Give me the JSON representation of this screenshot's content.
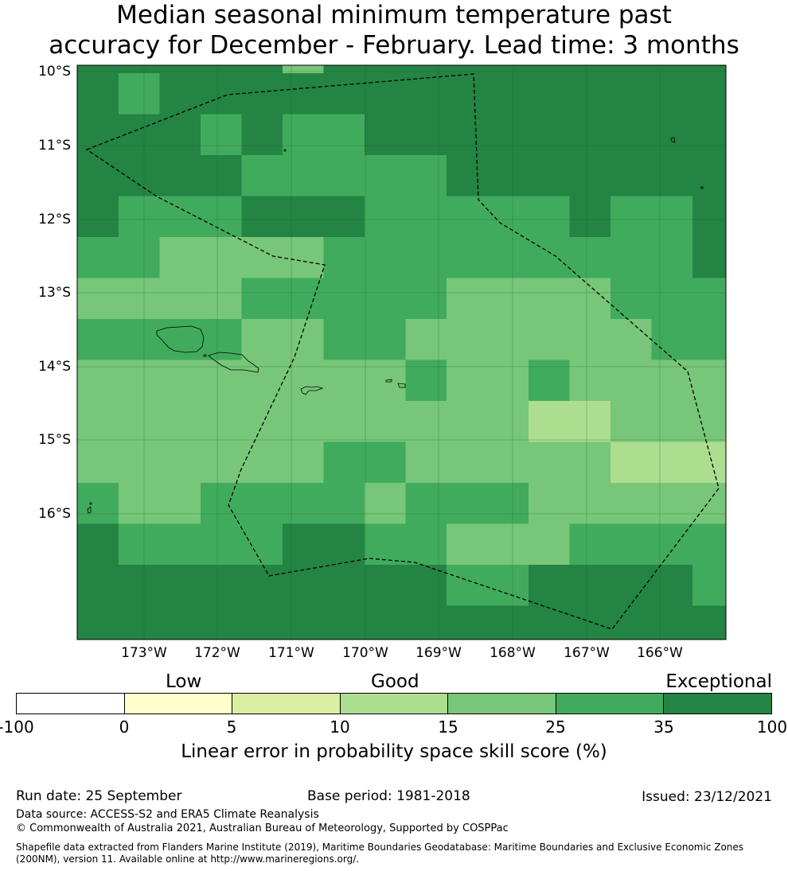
{
  "title": {
    "line1": "Median seasonal minimum temperature past",
    "line2": "accuracy for December - February. Lead time: 3 months"
  },
  "map": {
    "latitude_labels": [
      "10°S",
      "11°S",
      "12°S",
      "13°S",
      "14°S",
      "15°S",
      "16°S"
    ],
    "longitude_labels": [
      "173°W",
      "172°W",
      "171°W",
      "170°W",
      "169°W",
      "168°W",
      "167°W",
      "166°W"
    ],
    "skill_grid_legend": "0=white(-100-0),1=0-5,2=5-10,3=10-15,4=15-25,5=25-35,6=35-100",
    "skill_grid": [
      [
        6,
        6,
        6,
        6,
        6,
        4,
        6,
        6,
        6,
        6,
        6,
        6,
        6,
        6,
        6,
        6
      ],
      [
        6,
        5,
        6,
        6,
        6,
        6,
        6,
        6,
        6,
        6,
        6,
        6,
        6,
        6,
        6,
        6
      ],
      [
        6,
        6,
        6,
        5,
        6,
        5,
        5,
        6,
        6,
        6,
        6,
        6,
        6,
        6,
        6,
        6
      ],
      [
        6,
        6,
        6,
        6,
        5,
        5,
        5,
        5,
        5,
        6,
        6,
        6,
        6,
        6,
        6,
        6
      ],
      [
        6,
        5,
        5,
        5,
        6,
        6,
        6,
        5,
        5,
        5,
        5,
        5,
        6,
        5,
        5,
        6
      ],
      [
        5,
        5,
        4,
        4,
        4,
        4,
        5,
        5,
        5,
        5,
        5,
        5,
        5,
        5,
        5,
        6
      ],
      [
        4,
        4,
        4,
        4,
        5,
        5,
        5,
        5,
        5,
        4,
        4,
        4,
        4,
        5,
        5,
        5
      ],
      [
        5,
        5,
        5,
        5,
        4,
        4,
        5,
        5,
        4,
        4,
        4,
        4,
        4,
        4,
        5,
        5
      ],
      [
        4,
        4,
        4,
        4,
        4,
        4,
        4,
        4,
        5,
        4,
        4,
        5,
        4,
        4,
        4,
        4
      ],
      [
        4,
        4,
        4,
        4,
        4,
        4,
        4,
        4,
        4,
        4,
        4,
        3,
        3,
        4,
        4,
        4
      ],
      [
        4,
        4,
        4,
        4,
        4,
        4,
        5,
        5,
        4,
        4,
        4,
        4,
        4,
        3,
        3,
        3
      ],
      [
        5,
        4,
        4,
        5,
        5,
        5,
        5,
        4,
        5,
        5,
        5,
        4,
        4,
        4,
        4,
        4
      ],
      [
        6,
        5,
        5,
        5,
        5,
        6,
        6,
        5,
        5,
        4,
        4,
        4,
        5,
        5,
        5,
        5
      ],
      [
        6,
        6,
        6,
        6,
        6,
        6,
        6,
        6,
        6,
        5,
        5,
        6,
        6,
        6,
        6,
        5
      ],
      [
        6,
        6,
        6,
        6,
        6,
        6,
        6,
        6,
        6,
        6,
        6,
        6,
        6,
        6,
        6,
        6
      ]
    ]
  },
  "colorbar": {
    "category_labels": [
      "Low",
      "Good",
      "Exceptional"
    ],
    "colors": [
      "#ffffff",
      "#ffffcc",
      "#d9f0a3",
      "#addd8e",
      "#78c679",
      "#41ab5d",
      "#238443"
    ],
    "ticks": [
      "-100",
      "0",
      "5",
      "10",
      "15",
      "25",
      "35",
      "100"
    ],
    "label": "Linear error in probability space skill score (%)"
  },
  "footer": {
    "run_date": "Run date: 25 September",
    "base_period": "Base period: 1981-2018",
    "issued": "Issued: 23/12/2021",
    "data_source": "Data source: ACCESS-S2 and ERA5 Climate Reanalysis",
    "copyright": "© Commonwealth of Australia 2021, Australian Bureau of Meteorology, Supported by COSPPac",
    "shapefile_line1": "Shapefile data extracted from Flanders Marine Institute (2019), Maritime Boundaries Geodatabase: Maritime Boundaries and Exclusive Economic Zones",
    "shapefile_line2": "(200NM), version 11. Available online at http://www.marineregions.org/."
  }
}
